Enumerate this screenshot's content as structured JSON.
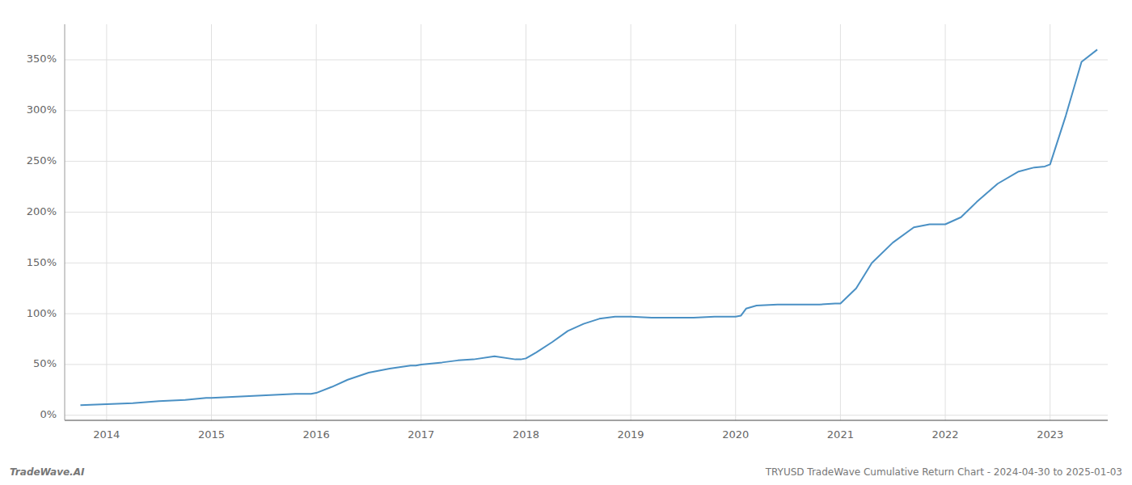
{
  "chart_data": {
    "type": "line",
    "title": "TRYUSD TradeWave Cumulative Return Chart - 2024-04-30 to 2025-01-03",
    "annotations": [
      "TradeWave.AI"
    ],
    "color": "#4a90c4",
    "grid": true,
    "xlim": [
      2013.6,
      2023.55
    ],
    "ylim": [
      -5,
      385
    ],
    "xticks": [
      2014,
      2015,
      2016,
      2017,
      2018,
      2019,
      2020,
      2021,
      2022,
      2023
    ],
    "yticks": [
      {
        "value": 0,
        "label": "0%"
      },
      {
        "value": 50,
        "label": "50%"
      },
      {
        "value": 100,
        "label": "100%"
      },
      {
        "value": 150,
        "label": "150%"
      },
      {
        "value": 200,
        "label": "200%"
      },
      {
        "value": 250,
        "label": "250%"
      },
      {
        "value": 300,
        "label": "300%"
      },
      {
        "value": 350,
        "label": "350%"
      }
    ],
    "x": [
      2013.75,
      2014.0,
      2014.25,
      2014.5,
      2014.75,
      2014.95,
      2015.0,
      2015.2,
      2015.4,
      2015.6,
      2015.8,
      2015.95,
      2016.0,
      2016.15,
      2016.3,
      2016.5,
      2016.7,
      2016.9,
      2016.95,
      2017.0,
      2017.2,
      2017.35,
      2017.5,
      2017.7,
      2017.9,
      2017.95,
      2018.0,
      2018.1,
      2018.25,
      2018.4,
      2018.55,
      2018.7,
      2018.85,
      2018.95,
      2019.0,
      2019.2,
      2019.4,
      2019.6,
      2019.8,
      2019.95,
      2020.0,
      2020.05,
      2020.1,
      2020.2,
      2020.4,
      2020.6,
      2020.8,
      2020.95,
      2021.0,
      2021.15,
      2021.3,
      2021.5,
      2021.7,
      2021.85,
      2021.95,
      2022.0,
      2022.15,
      2022.3,
      2022.5,
      2022.7,
      2022.85,
      2022.95,
      2023.0,
      2023.15,
      2023.3,
      2023.45
    ],
    "values": [
      10,
      11,
      12,
      14,
      15,
      17,
      17,
      18,
      19,
      20,
      21,
      21,
      22,
      28,
      35,
      42,
      46,
      49,
      49,
      50,
      52,
      54,
      55,
      58,
      55,
      55,
      56,
      62,
      72,
      83,
      90,
      95,
      97,
      97,
      97,
      96,
      96,
      96,
      97,
      97,
      97,
      98,
      105,
      108,
      109,
      109,
      109,
      110,
      110,
      125,
      150,
      170,
      185,
      188,
      188,
      188,
      195,
      210,
      228,
      240,
      244,
      245,
      247,
      295,
      348,
      360
    ]
  }
}
